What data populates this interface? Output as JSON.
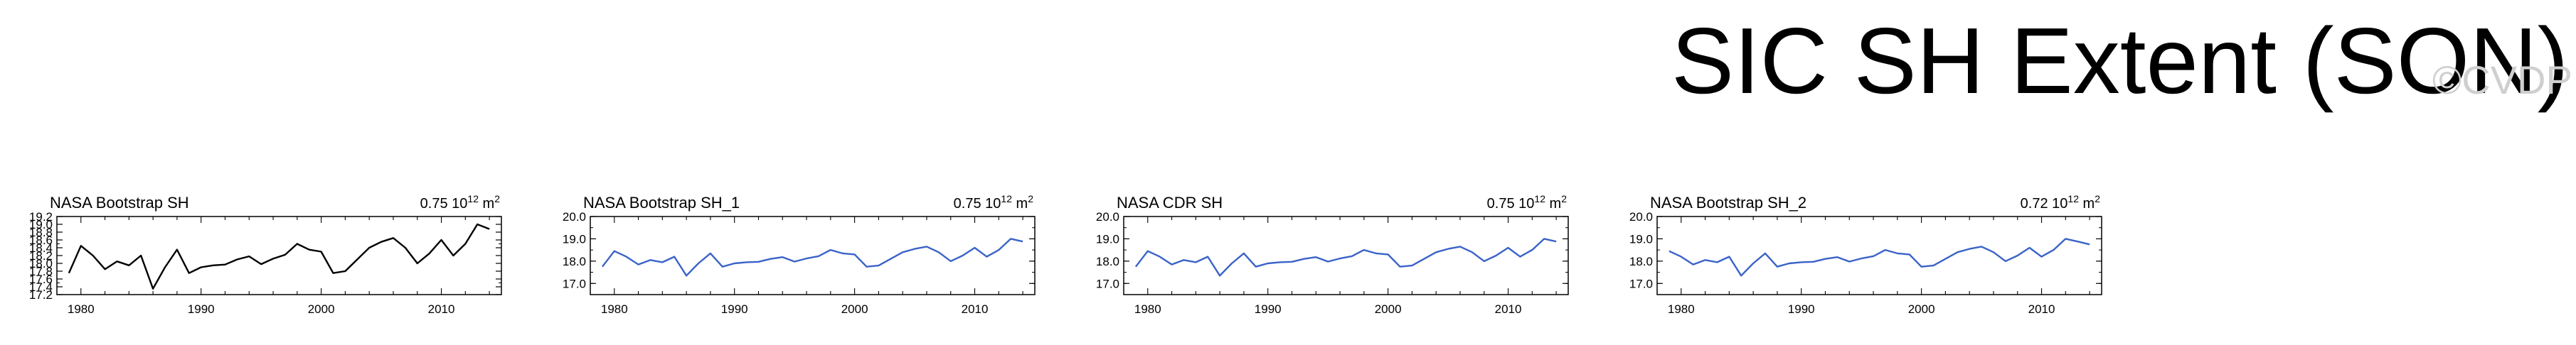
{
  "title": "SIC SH Extent (SON)",
  "watermark": "©CVDP",
  "chart_data": [
    {
      "type": "line",
      "title": "NASA Bootstrap SH",
      "annotation_base": "0.75 10",
      "annotation_exp": "12",
      "annotation_unit": " m",
      "annotation_unit_exp": "2",
      "color": "#000000",
      "xlim": [
        1978,
        2015
      ],
      "ylim": [
        17.2,
        19.2
      ],
      "yticks": [
        "19.2",
        "19.0",
        "18.8",
        "18.6",
        "18.4",
        "18.2",
        "18.0",
        "17.8",
        "17.6",
        "17.4",
        "17.2"
      ],
      "xticks": [
        "1980",
        "1990",
        "2000",
        "2010"
      ],
      "x": [
        1979,
        1980,
        1981,
        1982,
        1983,
        1984,
        1985,
        1986,
        1987,
        1988,
        1989,
        1990,
        1991,
        1992,
        1993,
        1994,
        1995,
        1996,
        1997,
        1998,
        1999,
        2000,
        2001,
        2002,
        2003,
        2004,
        2005,
        2006,
        2007,
        2008,
        2009,
        2010,
        2011,
        2012,
        2013,
        2014
      ],
      "y": [
        17.75,
        18.45,
        18.2,
        17.85,
        18.05,
        17.95,
        18.2,
        17.35,
        17.9,
        18.35,
        17.75,
        17.9,
        17.95,
        17.97,
        18.1,
        18.18,
        17.98,
        18.12,
        18.22,
        18.5,
        18.35,
        18.3,
        17.75,
        17.8,
        18.1,
        18.4,
        18.55,
        18.65,
        18.4,
        18.0,
        18.25,
        18.6,
        18.2,
        18.5,
        19.0,
        18.88
      ]
    },
    {
      "type": "line",
      "title": "NASA Bootstrap SH_1",
      "annotation_base": "0.75 10",
      "annotation_exp": "12",
      "annotation_unit": " m",
      "annotation_unit_exp": "2",
      "color": "#3a63c8",
      "xlim": [
        1978,
        2015
      ],
      "ylim": [
        16.5,
        20.0
      ],
      "yticks": [
        "20.0",
        "19.0",
        "18.0",
        "17.0"
      ],
      "xticks": [
        "1980",
        "1990",
        "2000",
        "2010"
      ],
      "x": [
        1979,
        1980,
        1981,
        1982,
        1983,
        1984,
        1985,
        1986,
        1987,
        1988,
        1989,
        1990,
        1991,
        1992,
        1993,
        1994,
        1995,
        1996,
        1997,
        1998,
        1999,
        2000,
        2001,
        2002,
        2003,
        2004,
        2005,
        2006,
        2007,
        2008,
        2009,
        2010,
        2011,
        2012,
        2013,
        2014
      ],
      "y": [
        17.75,
        18.45,
        18.2,
        17.85,
        18.05,
        17.95,
        18.2,
        17.35,
        17.9,
        18.35,
        17.75,
        17.9,
        17.95,
        17.97,
        18.1,
        18.18,
        17.98,
        18.12,
        18.22,
        18.5,
        18.35,
        18.3,
        17.75,
        17.8,
        18.1,
        18.4,
        18.55,
        18.65,
        18.4,
        18.0,
        18.25,
        18.6,
        18.2,
        18.5,
        19.0,
        18.88
      ]
    },
    {
      "type": "line",
      "title": "NASA CDR SH",
      "annotation_base": "0.75 10",
      "annotation_exp": "12",
      "annotation_unit": " m",
      "annotation_unit_exp": "2",
      "color": "#3a63c8",
      "xlim": [
        1978,
        2015
      ],
      "ylim": [
        16.5,
        20.0
      ],
      "yticks": [
        "20.0",
        "19.0",
        "18.0",
        "17.0"
      ],
      "xticks": [
        "1980",
        "1990",
        "2000",
        "2010"
      ],
      "x": [
        1979,
        1980,
        1981,
        1982,
        1983,
        1984,
        1985,
        1986,
        1987,
        1988,
        1989,
        1990,
        1991,
        1992,
        1993,
        1994,
        1995,
        1996,
        1997,
        1998,
        1999,
        2000,
        2001,
        2002,
        2003,
        2004,
        2005,
        2006,
        2007,
        2008,
        2009,
        2010,
        2011,
        2012,
        2013,
        2014
      ],
      "y": [
        17.75,
        18.45,
        18.2,
        17.85,
        18.05,
        17.95,
        18.2,
        17.35,
        17.9,
        18.35,
        17.75,
        17.9,
        17.95,
        17.97,
        18.1,
        18.18,
        17.98,
        18.12,
        18.22,
        18.5,
        18.35,
        18.3,
        17.75,
        17.8,
        18.1,
        18.4,
        18.55,
        18.65,
        18.4,
        18.0,
        18.25,
        18.6,
        18.2,
        18.5,
        19.0,
        18.88
      ]
    },
    {
      "type": "line",
      "title": "NASA Bootstrap SH_2",
      "annotation_base": "0.72 10",
      "annotation_exp": "12",
      "annotation_unit": " m",
      "annotation_unit_exp": "2",
      "color": "#3a63c8",
      "xlim": [
        1978,
        2015
      ],
      "ylim": [
        16.5,
        20.0
      ],
      "yticks": [
        "20.0",
        "19.0",
        "18.0",
        "17.0"
      ],
      "xticks": [
        "1980",
        "1990",
        "2000",
        "2010"
      ],
      "x": [
        1979,
        1980,
        1981,
        1982,
        1983,
        1984,
        1985,
        1986,
        1987,
        1988,
        1989,
        1990,
        1991,
        1992,
        1993,
        1994,
        1995,
        1996,
        1997,
        1998,
        1999,
        2000,
        2001,
        2002,
        2003,
        2004,
        2005,
        2006,
        2007,
        2008,
        2009,
        2010,
        2011,
        2012,
        2013,
        2014
      ],
      "y": [
        18.45,
        18.2,
        17.85,
        18.05,
        17.95,
        18.2,
        17.35,
        17.9,
        18.35,
        17.75,
        17.9,
        17.95,
        17.97,
        18.1,
        18.18,
        17.98,
        18.12,
        18.22,
        18.5,
        18.35,
        18.3,
        17.75,
        17.8,
        18.1,
        18.4,
        18.55,
        18.65,
        18.4,
        18.0,
        18.25,
        18.6,
        18.2,
        18.5,
        19.0,
        18.88,
        18.75
      ]
    }
  ]
}
